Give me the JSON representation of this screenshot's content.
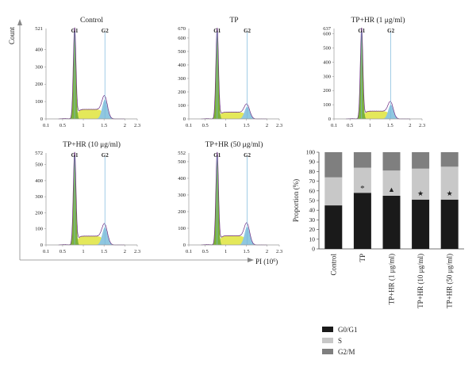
{
  "outer_axes": {
    "y_label": "Count",
    "x_label": "PI (10",
    "x_label_exp": "6",
    "x_label_close": ")"
  },
  "histogram_markers": [
    "G1",
    "G2"
  ],
  "chart_data": [
    {
      "type": "area",
      "title": "Control",
      "y_max_label": "521",
      "yticks": [
        0,
        100,
        200,
        300,
        400
      ],
      "xticks": [
        "0.1",
        "0.5",
        "1",
        "1.5",
        "2",
        "2.3"
      ],
      "xlim": [
        0.1,
        2.3
      ],
      "g1_peak": 521,
      "g2_peak": 112,
      "s_level": 55
    },
    {
      "type": "area",
      "title": "TP",
      "y_max_label": "670",
      "yticks": [
        0,
        100,
        200,
        300,
        400,
        500,
        600
      ],
      "xticks": [
        "0.1",
        "0.5",
        "1",
        "1.5",
        "2",
        "2.3"
      ],
      "xlim": [
        0.1,
        2.3
      ],
      "g1_peak": 670,
      "g2_peak": 90,
      "s_level": 50
    },
    {
      "type": "area",
      "title": "TP+HR (1 μg/ml)",
      "y_max_label": "637",
      "yticks": [
        0,
        100,
        200,
        300,
        400,
        500,
        600
      ],
      "xticks": [
        "0.1",
        "0.5",
        "1",
        "1.5",
        "2",
        "2.3"
      ],
      "xlim": [
        0.1,
        2.3
      ],
      "g1_peak": 637,
      "g2_peak": 100,
      "s_level": 55
    },
    {
      "type": "area",
      "title": "TP+HR (10 μg/ml)",
      "y_max_label": "572",
      "yticks": [
        0,
        100,
        200,
        300,
        400,
        500
      ],
      "xticks": [
        "0.1",
        "0.5",
        "1",
        "1.5",
        "2",
        "2.3"
      ],
      "xlim": [
        0.1,
        2.3
      ],
      "g1_peak": 572,
      "g2_peak": 110,
      "s_level": 55
    },
    {
      "type": "area",
      "title": "TP+HR (50 μg/ml)",
      "y_max_label": "552",
      "yticks": [
        0,
        100,
        200,
        300,
        400,
        500
      ],
      "xticks": [
        "0.1",
        "0.5",
        "1",
        "1.5",
        "2",
        "2.3"
      ],
      "xlim": [
        0.1,
        2.3
      ],
      "g1_peak": 552,
      "g2_peak": 110,
      "s_level": 55
    },
    {
      "type": "bar",
      "stacked": true,
      "ylabel": "Proportion (%)",
      "ylim": [
        0,
        100
      ],
      "yticks": [
        0,
        10,
        20,
        30,
        40,
        50,
        60,
        70,
        80,
        90,
        100
      ],
      "categories": [
        "Control",
        "TP",
        "TP+HR (1 μg/ml)",
        "TP+HR (10 μg/ml)",
        "TP+HR (50 μg/ml)"
      ],
      "series": [
        {
          "name": "G0/G1",
          "color": "#1a1a1a",
          "values": [
            45,
            58,
            55,
            51,
            51
          ]
        },
        {
          "name": "S",
          "color": "#c8c8c8",
          "values": [
            29,
            26,
            26,
            32,
            34
          ]
        },
        {
          "name": "G2/M",
          "color": "#7f7f7f",
          "values": [
            26,
            16,
            19,
            17,
            15
          ]
        }
      ],
      "significance_marks": [
        "",
        "*",
        "▲",
        "★",
        "★"
      ],
      "legend_position": "bottom"
    }
  ],
  "colors": {
    "g1_fill": "#7bb23a",
    "s_fill": "#e4e85a",
    "g2_fill": "#8fc7e0",
    "marker_line": "#7ab8dc",
    "outline": "#6a2a82",
    "axis": "#888888"
  }
}
